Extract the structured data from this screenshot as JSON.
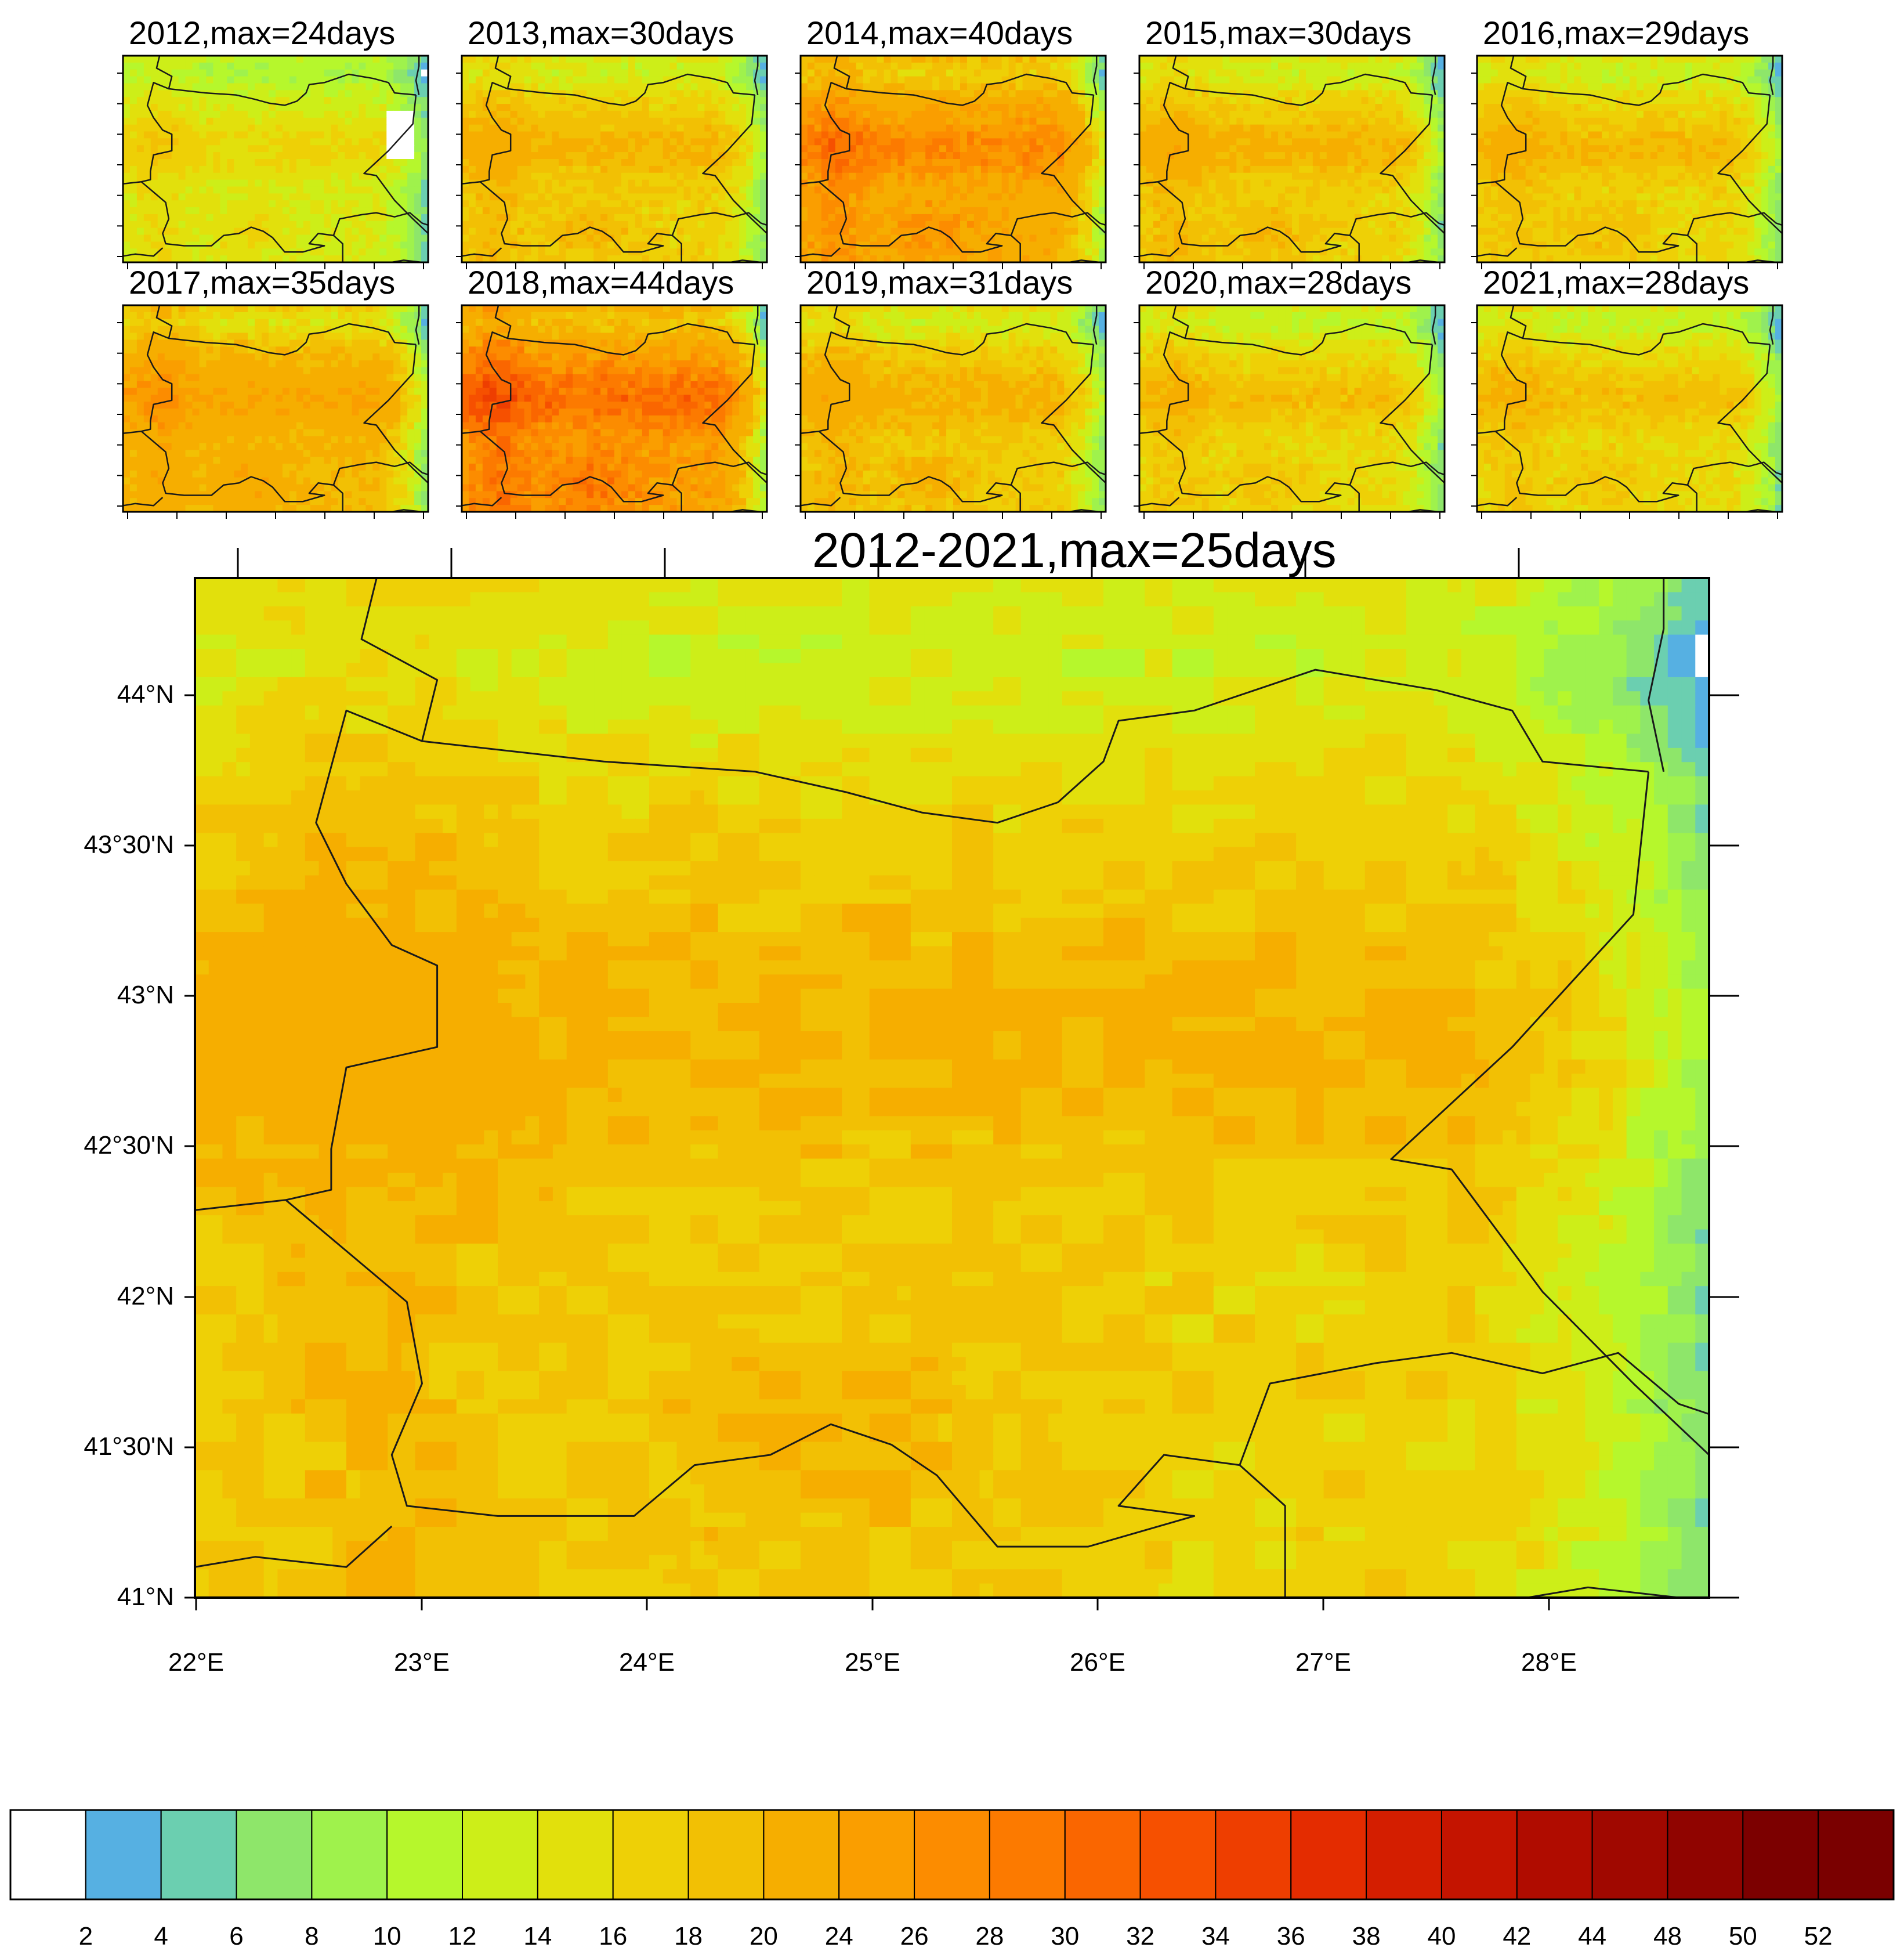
{
  "panels": [
    {
      "title": "2012,max=24days",
      "max_days": 24,
      "eastern_anomaly": "blue-white"
    },
    {
      "title": "2013,max=30days",
      "max_days": 30
    },
    {
      "title": "2014,max=40days",
      "max_days": 40
    },
    {
      "title": "2015,max=30days",
      "max_days": 30
    },
    {
      "title": "2016,max=29days",
      "max_days": 29
    },
    {
      "title": "2017,max=35days",
      "max_days": 35
    },
    {
      "title": "2018,max=44days",
      "max_days": 44
    },
    {
      "title": "2019,max=31days",
      "max_days": 31
    },
    {
      "title": "2020,max=28days",
      "max_days": 28
    },
    {
      "title": "2021,max=28days",
      "max_days": 28
    }
  ],
  "main_map": {
    "title": "2012-2021,max=25days",
    "max_days": 25,
    "lat_labels": [
      "44°N",
      "43°30'N",
      "43°N",
      "42°30'N",
      "42°N",
      "41°30'N",
      "41°N"
    ],
    "lon_labels": [
      "22°E",
      "23°E",
      "24°E",
      "25°E",
      "26°E",
      "27°E",
      "28°E"
    ]
  },
  "colorbar": {
    "labels": [
      "2",
      "4",
      "6",
      "8",
      "10",
      "12",
      "14",
      "16",
      "18",
      "20",
      "24",
      "26",
      "28",
      "30",
      "32",
      "34",
      "36",
      "38",
      "40",
      "42",
      "44",
      "48",
      "50",
      "52"
    ],
    "colors": [
      "#ffffff",
      "#56b0e2",
      "#6bcfb0",
      "#8ee66a",
      "#9ff24c",
      "#b6f72c",
      "#cdee18",
      "#e2e00c",
      "#eed006",
      "#f2c004",
      "#f6ae00",
      "#fa9e00",
      "#fc8c00",
      "#fc7a00",
      "#fa6600",
      "#f65000",
      "#ee3e00",
      "#e42c00",
      "#d41e00",
      "#c41400",
      "#b00c00",
      "#a00800",
      "#900400",
      "#7c0000"
    ]
  }
}
